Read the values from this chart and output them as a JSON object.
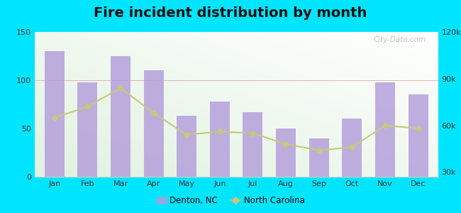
{
  "title": "Fire incident distribution by month",
  "months": [
    "Jan",
    "Feb",
    "Mar",
    "Apr",
    "May",
    "Jun",
    "Jul",
    "Aug",
    "Sep",
    "Oct",
    "Nov",
    "Dec"
  ],
  "bar_values": [
    130,
    98,
    125,
    110,
    63,
    78,
    67,
    50,
    40,
    60,
    98,
    85
  ],
  "line_values": [
    65000,
    72000,
    84000,
    68000,
    54000,
    56000,
    55000,
    48000,
    44000,
    46000,
    60000,
    58000
  ],
  "bar_color": "#b39ddb",
  "line_color": "#c8c87a",
  "line_marker": "D",
  "bar_ylim": [
    0,
    150
  ],
  "line_ylim": [
    27000,
    120000
  ],
  "bar_yticks": [
    0,
    50,
    100,
    150
  ],
  "line_yticks": [
    30000,
    60000,
    90000,
    120000
  ],
  "line_ytick_labels": [
    "30k",
    "60k",
    "90k",
    "120k"
  ],
  "outer_bg": "#00e5ff",
  "legend_label_bar": "Denton, NC",
  "legend_label_line": "North Carolina",
  "title_fontsize": 14,
  "watermark": "City-Data.com"
}
